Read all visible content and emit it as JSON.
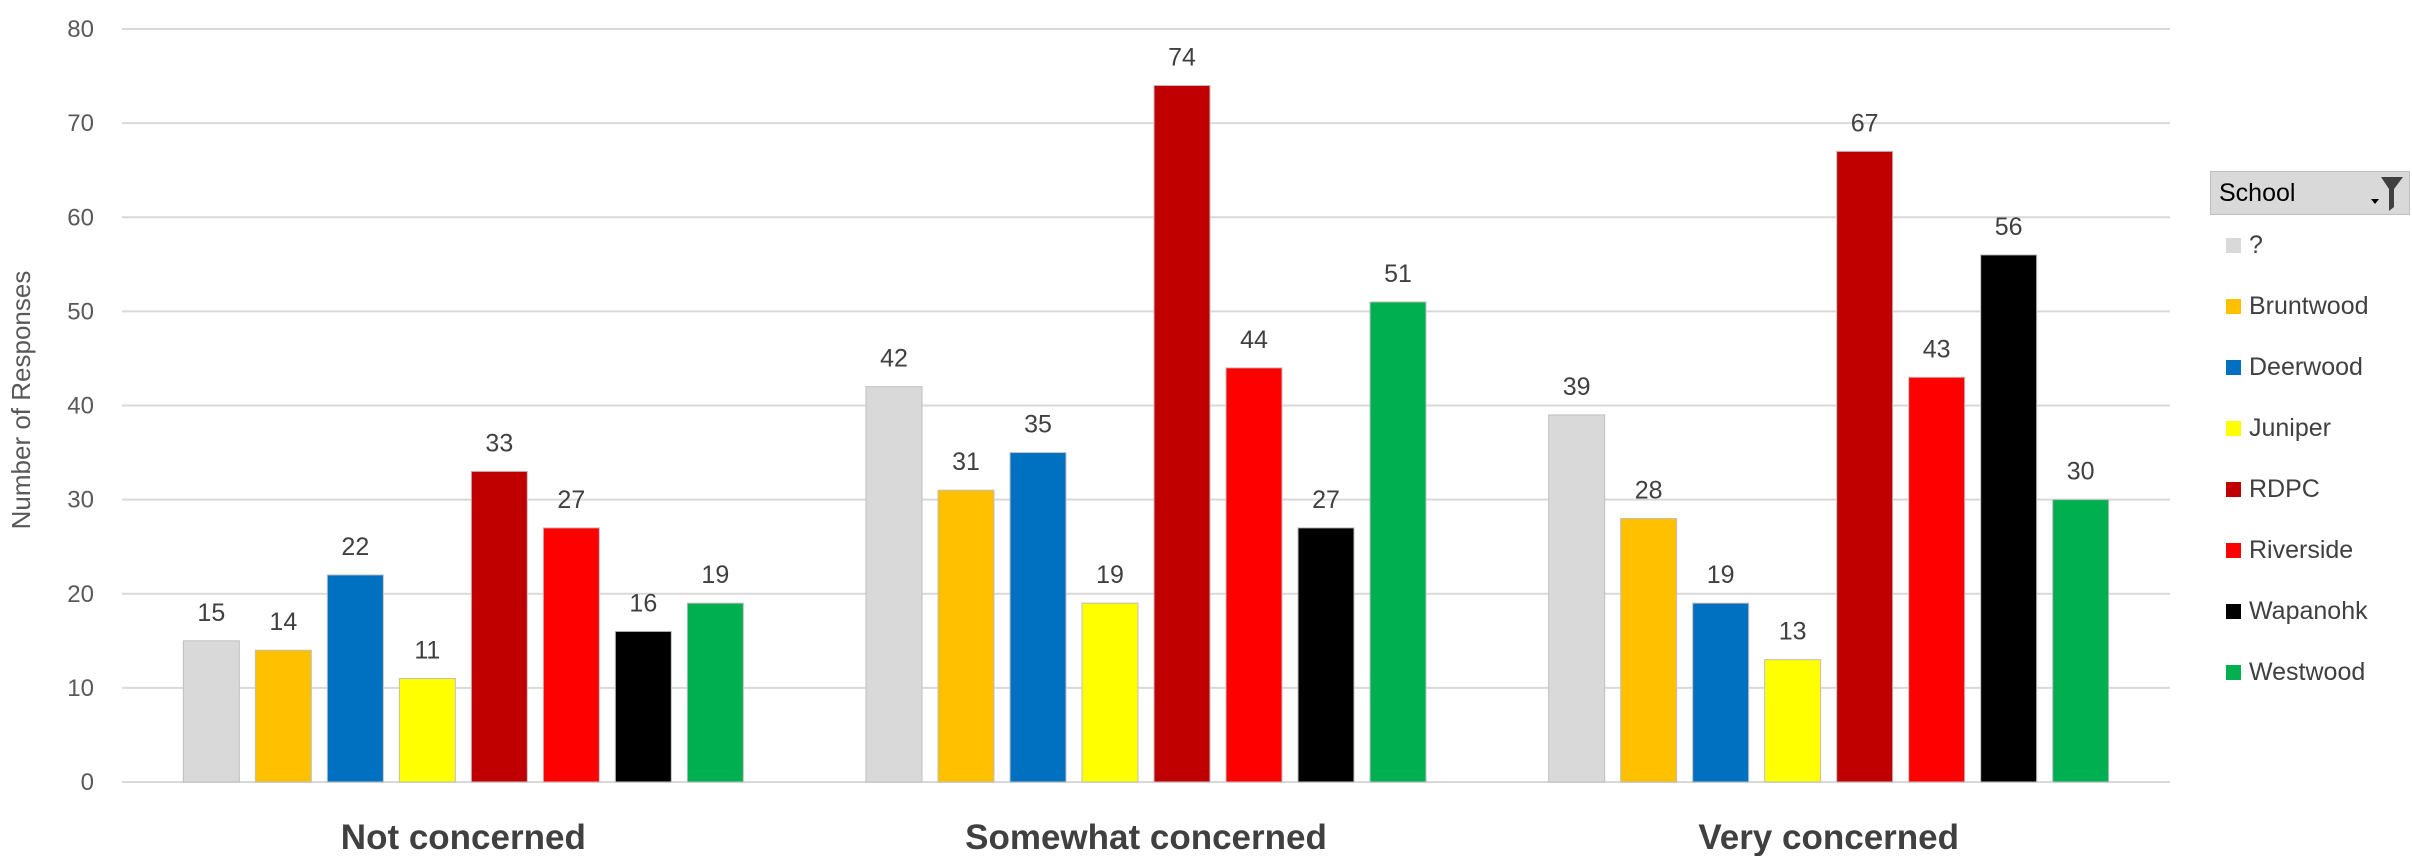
{
  "chart_data": {
    "type": "bar",
    "categories": [
      "Not concerned",
      "Somewhat concerned",
      "Very concerned"
    ],
    "series": [
      {
        "name": "?",
        "color": "#d9d9d9",
        "values": [
          15,
          42,
          39
        ]
      },
      {
        "name": "Bruntwood",
        "color": "#ffc000",
        "values": [
          14,
          31,
          28
        ]
      },
      {
        "name": "Deerwood",
        "color": "#0070c0",
        "values": [
          22,
          35,
          19
        ]
      },
      {
        "name": "Juniper",
        "color": "#ffff00",
        "values": [
          11,
          19,
          13
        ]
      },
      {
        "name": "RDPC",
        "color": "#c00000",
        "values": [
          33,
          74,
          67
        ]
      },
      {
        "name": "Riverside",
        "color": "#ff0000",
        "values": [
          27,
          44,
          43
        ]
      },
      {
        "name": "Wapanohk",
        "color": "#000000",
        "values": [
          16,
          27,
          56
        ]
      },
      {
        "name": "Westwood",
        "color": "#00b050",
        "values": [
          19,
          51,
          30
        ]
      }
    ],
    "ylabel": "Number of Responses",
    "xlabel": "",
    "ylim": [
      0,
      80
    ],
    "yticks": [
      0,
      10,
      20,
      30,
      40,
      50,
      60,
      70,
      80
    ],
    "grid": true,
    "legend_position": "right",
    "legend_title": "School"
  }
}
